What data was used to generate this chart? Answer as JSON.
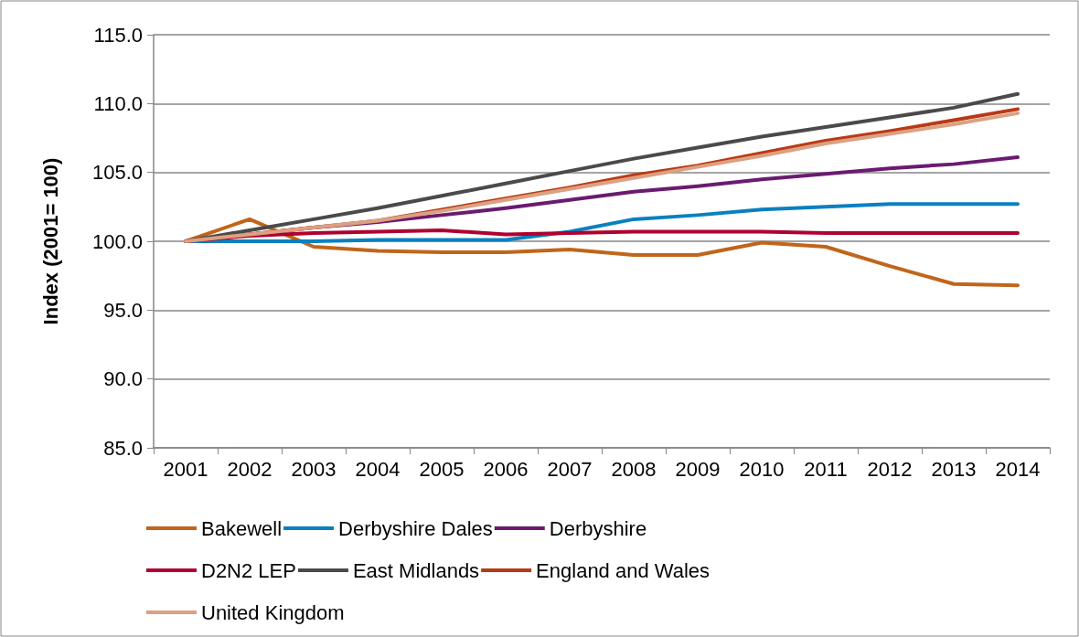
{
  "chart_data": {
    "type": "line",
    "ylabel": "Index (2001= 100)",
    "categories": [
      "2001",
      "2002",
      "2003",
      "2004",
      "2005",
      "2006",
      "2007",
      "2008",
      "2009",
      "2010",
      "2011",
      "2012",
      "2013",
      "2014"
    ],
    "series": [
      {
        "name": "Bakewell",
        "color": "#c0651a",
        "values": [
          100,
          101.6,
          99.6,
          99.3,
          99.2,
          99.2,
          99.4,
          99.0,
          99.0,
          99.9,
          99.6,
          98.2,
          96.9,
          96.8
        ]
      },
      {
        "name": "Derbyshire Dales",
        "color": "#0a80c0",
        "values": [
          100,
          100,
          100,
          100.1,
          100.1,
          100.1,
          100.7,
          101.6,
          101.9,
          102.3,
          102.5,
          102.7,
          102.7,
          102.7
        ]
      },
      {
        "name": "Derbyshire",
        "color": "#6a1b71",
        "values": [
          100,
          100.5,
          101.0,
          101.4,
          101.9,
          102.4,
          103.0,
          103.6,
          104.0,
          104.5,
          104.9,
          105.3,
          105.6,
          106.1
        ]
      },
      {
        "name": "D2N2 LEP",
        "color": "#b00030",
        "values": [
          100,
          100.4,
          100.6,
          100.7,
          100.8,
          100.5,
          100.6,
          100.7,
          100.7,
          100.7,
          100.6,
          100.6,
          100.6,
          100.6
        ]
      },
      {
        "name": "East Midlands",
        "color": "#4a4a4a",
        "values": [
          100,
          100.8,
          101.6,
          102.4,
          103.3,
          104.2,
          105.1,
          106.0,
          106.8,
          107.6,
          108.3,
          109.0,
          109.7,
          110.7
        ]
      },
      {
        "name": "England and Wales",
        "color": "#b83a14",
        "values": [
          100,
          100.5,
          101.0,
          101.5,
          102.3,
          103.1,
          103.9,
          104.8,
          105.5,
          106.4,
          107.3,
          108.0,
          108.8,
          109.6
        ]
      },
      {
        "name": "United Kingdom",
        "color": "#dca082",
        "values": [
          100,
          100.5,
          101.0,
          101.5,
          102.2,
          103.0,
          103.8,
          104.6,
          105.4,
          106.2,
          107.1,
          107.8,
          108.5,
          109.3
        ]
      }
    ],
    "ylim": [
      85,
      115
    ],
    "yticks": [
      {
        "value": 85,
        "label": "85.0"
      },
      {
        "value": 90,
        "label": "90.0"
      },
      {
        "value": 95,
        "label": "95.0"
      },
      {
        "value": 100,
        "label": "100.0"
      },
      {
        "value": 105,
        "label": "105.0"
      },
      {
        "value": 110,
        "label": "110.0"
      },
      {
        "value": 115,
        "label": "115.0"
      }
    ],
    "grid": "y",
    "legend": "bottom",
    "marker": "none",
    "line_style": "solid"
  }
}
